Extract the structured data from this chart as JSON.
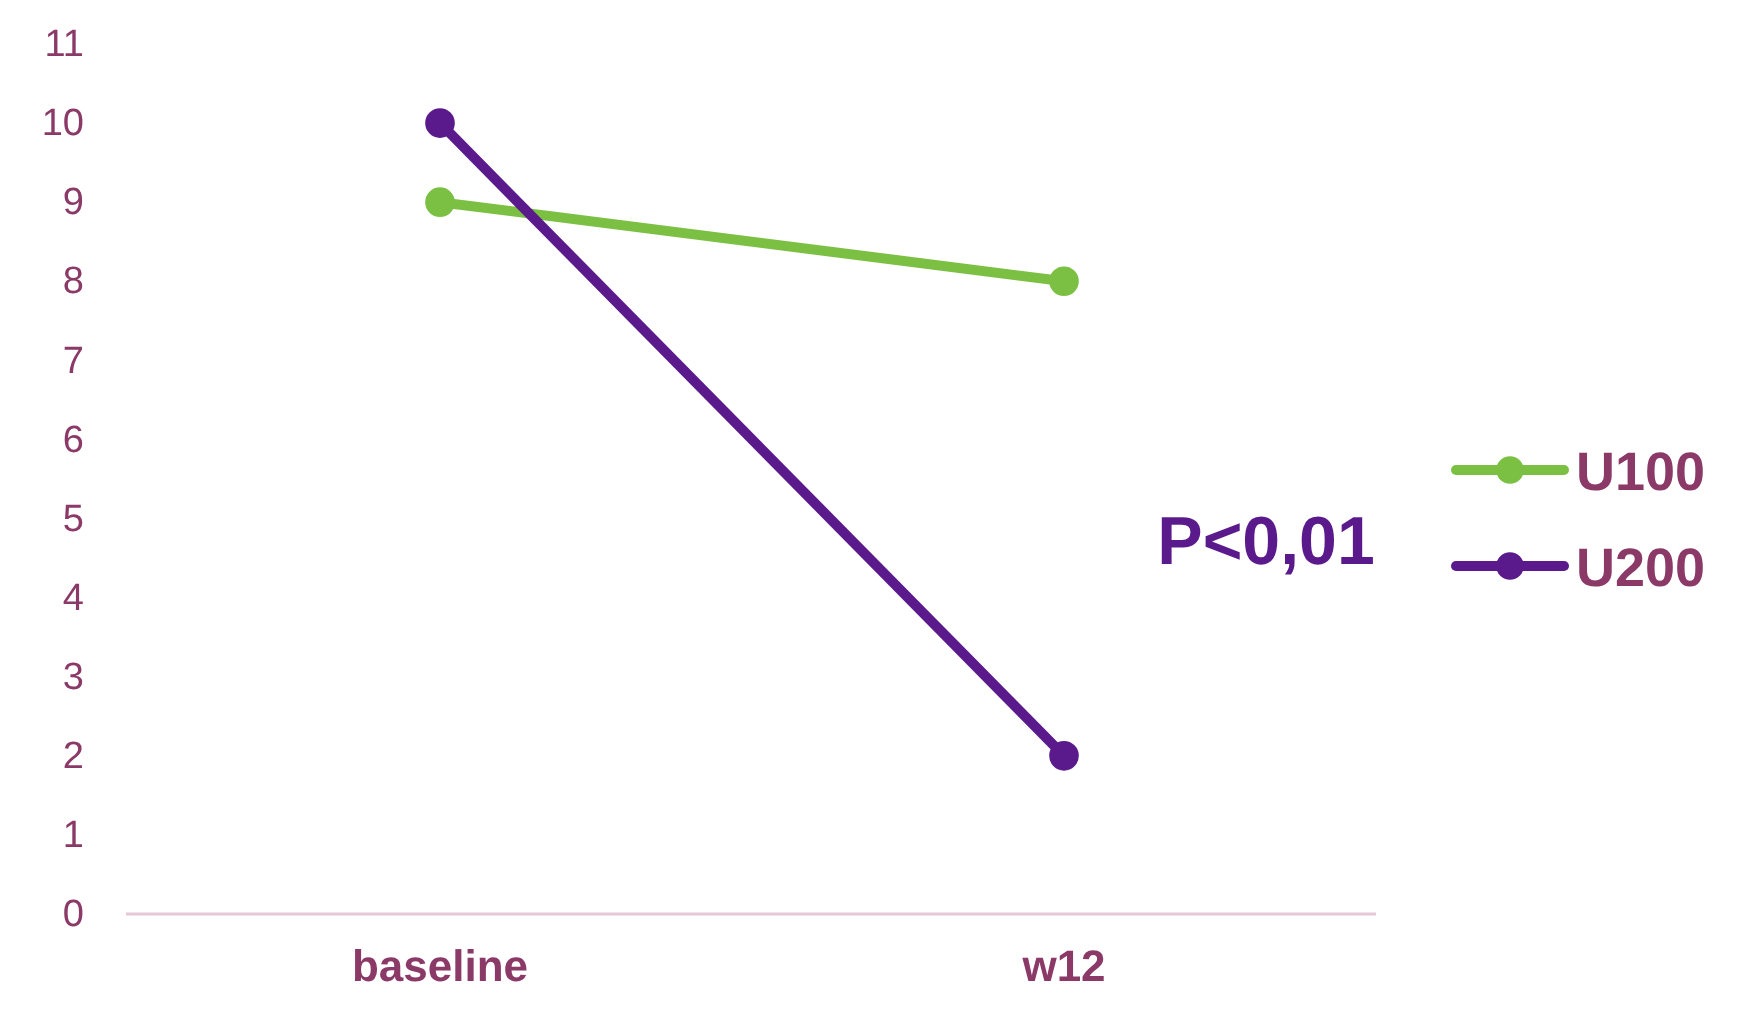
{
  "chart_data": {
    "type": "line",
    "categories": [
      "baseline",
      "w12"
    ],
    "series": [
      {
        "name": "U100",
        "color": "#7bc043",
        "values": [
          9,
          8
        ]
      },
      {
        "name": "U200",
        "color": "#5b1a8c",
        "values": [
          10,
          2
        ]
      }
    ],
    "ylim": [
      0,
      11
    ],
    "yticks": [
      0,
      1,
      2,
      3,
      4,
      5,
      6,
      7,
      8,
      9,
      10,
      11
    ],
    "annotations": [
      "P<0,01"
    ],
    "legend": "right",
    "marker": "circle",
    "line_style": "solid",
    "grid": false
  }
}
